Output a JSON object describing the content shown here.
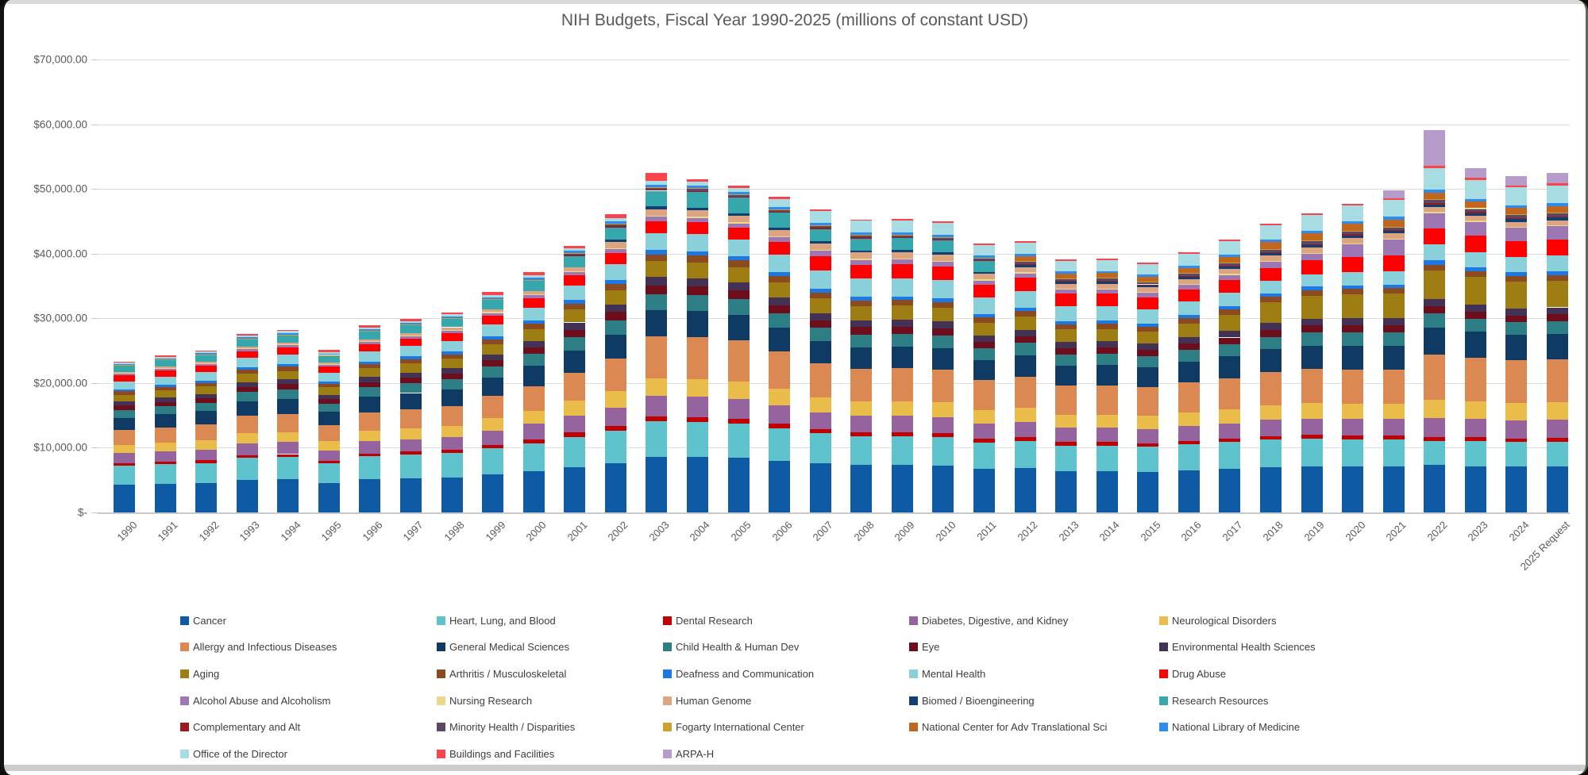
{
  "window": {
    "top_strip": true,
    "bottom_strip": true
  },
  "chart_data": {
    "type": "stacked-bar",
    "title": "NIH Budgets, Fiscal Year 1990-2025 (millions of constant USD)",
    "grid": true,
    "legend_position": "bottom",
    "y_axis": {
      "min": 0,
      "max": 70000,
      "step": 10000,
      "tick_labels": [
        "$-",
        "$10,000.00",
        "$20,000.00",
        "$30,000.00",
        "$40,000.00",
        "$50,000.00",
        "$60,000.00",
        "$70,000.00"
      ]
    },
    "categories": [
      "1990",
      "1991",
      "1992",
      "1993",
      "1994",
      "1995",
      "1996",
      "1997",
      "1998",
      "1999",
      "2000",
      "2001",
      "2002",
      "2003",
      "2004",
      "2005",
      "2006",
      "2007",
      "2008",
      "2009",
      "2010",
      "2011",
      "2012",
      "2013",
      "2014",
      "2015",
      "2016",
      "2017",
      "2018",
      "2019",
      "2020",
      "2021",
      "2022",
      "2023",
      "2024",
      "2025 Request"
    ],
    "series": [
      {
        "name": "Cancer",
        "color": "#0E5AA4",
        "values": [
          4300,
          4450,
          4550,
          5000,
          5100,
          4500,
          5150,
          5300,
          5450,
          5900,
          6400,
          7000,
          7600,
          8600,
          8550,
          8400,
          8000,
          7600,
          7300,
          7300,
          7250,
          6700,
          6850,
          6400,
          6400,
          6300,
          6550,
          6750,
          7000,
          7100,
          7050,
          7050,
          7300,
          7150,
          7050,
          7100
        ]
      },
      {
        "name": "Heart, Lung, and Blood",
        "color": "#5FC3CD",
        "values": [
          2900,
          3000,
          3100,
          3400,
          3450,
          3050,
          3500,
          3600,
          3700,
          4000,
          4300,
          4700,
          5050,
          5500,
          5450,
          5350,
          5000,
          4600,
          4450,
          4450,
          4400,
          4100,
          4200,
          3950,
          3950,
          3900,
          4000,
          4100,
          4250,
          4300,
          4250,
          4250,
          3700,
          3850,
          3800,
          3850
        ]
      },
      {
        "name": "Dental Research",
        "color": "#C00000",
        "values": [
          390,
          400,
          410,
          450,
          460,
          410,
          470,
          480,
          500,
          540,
          580,
          630,
          680,
          730,
          730,
          710,
          670,
          620,
          600,
          600,
          590,
          550,
          560,
          520,
          520,
          510,
          530,
          540,
          560,
          570,
          570,
          570,
          620,
          600,
          580,
          590
        ]
      },
      {
        "name": "Diabetes, Digestive, and Kidney",
        "color": "#95639E",
        "values": [
          1550,
          1600,
          1650,
          1800,
          1850,
          1650,
          1900,
          1950,
          2000,
          2200,
          2400,
          2650,
          2900,
          3150,
          3140,
          3080,
          2900,
          2650,
          2550,
          2550,
          2530,
          2350,
          2400,
          2250,
          2250,
          2220,
          2320,
          2400,
          2500,
          2550,
          2560,
          2560,
          2950,
          2850,
          2800,
          2800
        ]
      },
      {
        "name": "Neurological Disorders",
        "color": "#EABC4A",
        "values": [
          1300,
          1350,
          1400,
          1550,
          1580,
          1400,
          1600,
          1650,
          1700,
          1900,
          2050,
          2300,
          2500,
          2750,
          2740,
          2690,
          2520,
          2320,
          2240,
          2250,
          2230,
          2070,
          2120,
          1970,
          1980,
          1970,
          2050,
          2140,
          2270,
          2360,
          2390,
          2390,
          2850,
          2750,
          2700,
          2700
        ]
      },
      {
        "name": "Allergy and Infectious Diseases",
        "color": "#DC8853",
        "values": [
          2250,
          2350,
          2450,
          2700,
          2780,
          2450,
          2850,
          2980,
          3100,
          3450,
          3800,
          4300,
          5000,
          6450,
          6450,
          6350,
          5800,
          5300,
          5100,
          5120,
          5080,
          4700,
          4820,
          4490,
          4520,
          4450,
          4650,
          4840,
          5100,
          5270,
          5300,
          5300,
          7000,
          6700,
          6550,
          6600
        ]
      },
      {
        "name": "General Medical Sciences",
        "color": "#0E3A63",
        "values": [
          1950,
          2020,
          2090,
          2300,
          2350,
          2080,
          2400,
          2490,
          2580,
          2840,
          3100,
          3450,
          3750,
          4100,
          4080,
          4000,
          3700,
          3400,
          3300,
          3310,
          3280,
          3030,
          3370,
          3140,
          3160,
          3110,
          3250,
          3370,
          3530,
          3630,
          3660,
          3660,
          4200,
          4050,
          3950,
          3950
        ]
      },
      {
        "name": "Child Health & Human Dev",
        "color": "#2E7E85",
        "values": [
          1200,
          1240,
          1280,
          1400,
          1430,
          1270,
          1460,
          1510,
          1560,
          1710,
          1860,
          2060,
          2230,
          2420,
          2410,
          2360,
          2200,
          2050,
          1980,
          1980,
          1970,
          1820,
          1860,
          1730,
          1740,
          1710,
          1790,
          1850,
          1930,
          1990,
          2000,
          2000,
          2100,
          2000,
          1950,
          1980
        ]
      },
      {
        "name": "Eye",
        "color": "#6E0D1C",
        "values": [
          670,
          690,
          710,
          780,
          800,
          710,
          820,
          850,
          880,
          960,
          1050,
          1160,
          1260,
          1360,
          1360,
          1330,
          1250,
          1160,
          1120,
          1120,
          1110,
          1030,
          1050,
          980,
          980,
          970,
          1010,
          1040,
          1090,
          1120,
          1130,
          1130,
          1150,
          1100,
          1070,
          1080
        ]
      },
      {
        "name": "Environmental Health Sciences",
        "color": "#433156",
        "values": [
          640,
          660,
          680,
          750,
          770,
          680,
          780,
          810,
          840,
          920,
          1000,
          1110,
          1200,
          1300,
          1290,
          1270,
          1190,
          1110,
          1070,
          1070,
          1060,
          980,
          1000,
          930,
          930,
          920,
          960,
          990,
          1030,
          1060,
          1070,
          1070,
          1100,
          1060,
          1030,
          1040
        ]
      },
      {
        "name": "Aging",
        "color": "#9E7D13",
        "values": [
          1050,
          1100,
          1140,
          1280,
          1310,
          1150,
          1350,
          1400,
          1460,
          1610,
          1780,
          1980,
          2190,
          2460,
          2450,
          2400,
          2290,
          2260,
          2190,
          2190,
          2180,
          2010,
          2060,
          1920,
          1940,
          1900,
          2100,
          2550,
          3200,
          3500,
          3700,
          3800,
          4400,
          4250,
          4150,
          4100
        ]
      },
      {
        "name": "Arthritis / Musculoskeletal",
        "color": "#8C4A21",
        "values": [
          510,
          530,
          550,
          600,
          620,
          550,
          630,
          650,
          680,
          740,
          810,
          900,
          970,
          1060,
          1050,
          1030,
          960,
          890,
          860,
          860,
          850,
          790,
          810,
          750,
          750,
          740,
          780,
          800,
          840,
          860,
          870,
          870,
          920,
          890,
          870,
          880
        ]
      },
      {
        "name": "Deafness and Communication",
        "color": "#1E78E4",
        "values": [
          330,
          340,
          350,
          390,
          400,
          350,
          410,
          420,
          440,
          480,
          520,
          580,
          630,
          680,
          680,
          670,
          630,
          580,
          560,
          560,
          560,
          520,
          530,
          490,
          490,
          490,
          510,
          530,
          550,
          570,
          570,
          570,
          640,
          620,
          600,
          610
        ]
      },
      {
        "name": "Mental Health",
        "color": "#8AD0DB",
        "values": [
          1240,
          1280,
          1330,
          1470,
          1500,
          1330,
          1540,
          1600,
          1650,
          1820,
          1990,
          2210,
          2400,
          2600,
          2590,
          2540,
          2700,
          2900,
          2850,
          2850,
          2800,
          2550,
          2600,
          2400,
          2300,
          2200,
          2150,
          2100,
          1950,
          1950,
          2000,
          2050,
          2450,
          2400,
          2350,
          2400
        ]
      },
      {
        "name": "Drug Abuse",
        "color": "#FE0000",
        "values": [
          900,
          930,
          960,
          1060,
          1080,
          960,
          1110,
          1150,
          1190,
          1310,
          1430,
          1600,
          1740,
          1890,
          1880,
          1850,
          2000,
          2200,
          2120,
          2130,
          2110,
          1950,
          2000,
          1860,
          1880,
          1850,
          1800,
          1900,
          2000,
          2100,
          2300,
          2500,
          2550,
          2500,
          2450,
          2450
        ]
      },
      {
        "name": "Alcohol Abuse and Alcoholism",
        "color": "#9C77B4",
        "values": [
          310,
          320,
          330,
          360,
          370,
          330,
          380,
          390,
          410,
          450,
          490,
          540,
          590,
          640,
          640,
          630,
          700,
          780,
          750,
          760,
          750,
          700,
          710,
          660,
          670,
          660,
          700,
          800,
          900,
          1000,
          2000,
          2350,
          2300,
          2150,
          2100,
          2100
        ]
      },
      {
        "name": "Nursing Research",
        "color": "#EBD98B",
        "values": [
          80,
          85,
          90,
          100,
          100,
          90,
          105,
          110,
          115,
          125,
          135,
          150,
          165,
          180,
          180,
          175,
          170,
          170,
          165,
          165,
          160,
          150,
          155,
          145,
          145,
          140,
          145,
          150,
          155,
          160,
          160,
          160,
          190,
          182,
          178,
          180
        ]
      },
      {
        "name": "Human Genome",
        "color": "#DDA482",
        "values": [
          160,
          190,
          220,
          260,
          280,
          250,
          310,
          340,
          370,
          430,
          490,
          550,
          950,
          1000,
          1000,
          990,
          980,
          970,
          950,
          950,
          940,
          870,
          800,
          750,
          760,
          750,
          780,
          810,
          840,
          870,
          870,
          870,
          780,
          750,
          730,
          740
        ]
      },
      {
        "name": "Biomed / Bioengineering",
        "color": "#123F72",
        "values": [
          0,
          0,
          0,
          0,
          0,
          0,
          0,
          0,
          0,
          0,
          0,
          0,
          330,
          390,
          390,
          385,
          370,
          360,
          350,
          350,
          345,
          320,
          330,
          305,
          305,
          305,
          315,
          330,
          345,
          355,
          355,
          355,
          420,
          400,
          395,
          400
        ]
      },
      {
        "name": "Research Resources",
        "color": "#37A7AE",
        "values": [
          1000,
          1040,
          1070,
          1180,
          1210,
          1070,
          1230,
          1280,
          1330,
          1460,
          1590,
          1770,
          1930,
          2450,
          2440,
          2400,
          2290,
          1900,
          1840,
          1840,
          1830,
          1690,
          0,
          0,
          0,
          0,
          0,
          0,
          0,
          0,
          0,
          0,
          0,
          0,
          0,
          0
        ]
      },
      {
        "name": "Complementary and Alt",
        "color": "#9A1B1F",
        "values": [
          0,
          0,
          0,
          0,
          0,
          0,
          0,
          0,
          0,
          90,
          120,
          150,
          170,
          195,
          195,
          190,
          185,
          180,
          175,
          175,
          170,
          160,
          160,
          150,
          150,
          150,
          155,
          160,
          165,
          170,
          170,
          170,
          180,
          172,
          168,
          170
        ]
      },
      {
        "name": "Minority Health / Disparities",
        "color": "#5C4767",
        "values": [
          0,
          0,
          0,
          0,
          0,
          0,
          0,
          0,
          0,
          0,
          0,
          200,
          260,
          290,
          290,
          285,
          275,
          265,
          260,
          260,
          255,
          235,
          370,
          345,
          350,
          345,
          360,
          370,
          400,
          420,
          420,
          420,
          500,
          480,
          470,
          475
        ]
      },
      {
        "name": "Fogarty International Center",
        "color": "#CDA032",
        "values": [
          50,
          52,
          54,
          60,
          61,
          54,
          62,
          65,
          67,
          74,
          81,
          90,
          98,
          107,
          107,
          104,
          101,
          98,
          95,
          95,
          94,
          87,
          90,
          83,
          84,
          83,
          86,
          89,
          93,
          96,
          96,
          96,
          115,
          110,
          107,
          108
        ]
      },
      {
        "name": "National Center for Adv Translational Sci",
        "color": "#C0661E",
        "values": [
          0,
          0,
          0,
          0,
          0,
          0,
          0,
          0,
          0,
          0,
          0,
          0,
          0,
          0,
          0,
          0,
          0,
          0,
          0,
          0,
          0,
          0,
          780,
          730,
          760,
          760,
          800,
          900,
          1100,
          1150,
          1100,
          1050,
          1050,
          1010,
          990,
          1000
        ]
      },
      {
        "name": "National Library of Medicine",
        "color": "#2D8CEE",
        "values": [
          180,
          190,
          195,
          215,
          220,
          195,
          225,
          235,
          245,
          265,
          290,
          320,
          350,
          380,
          380,
          370,
          360,
          350,
          340,
          340,
          335,
          310,
          320,
          300,
          300,
          295,
          310,
          320,
          335,
          345,
          345,
          450,
          470,
          455,
          445,
          450
        ]
      },
      {
        "name": "Office of the Director",
        "color": "#A7DCE2",
        "values": [
          240,
          250,
          260,
          290,
          300,
          265,
          305,
          315,
          330,
          360,
          395,
          440,
          560,
          610,
          610,
          600,
          1200,
          1900,
          1850,
          1860,
          1850,
          1700,
          1750,
          1650,
          1700,
          1700,
          1900,
          2100,
          2200,
          2500,
          2550,
          2600,
          3300,
          2900,
          2750,
          2800
        ]
      },
      {
        "name": "Buildings and Facilities",
        "color": "#F9444C",
        "values": [
          140,
          150,
          160,
          175,
          180,
          330,
          350,
          330,
          330,
          420,
          450,
          400,
          640,
          1200,
          420,
          330,
          300,
          250,
          230,
          230,
          230,
          210,
          220,
          200,
          210,
          200,
          210,
          220,
          230,
          240,
          240,
          300,
          350,
          320,
          295,
          310
        ]
      },
      {
        "name": "ARPA-H",
        "color": "#B79CCB",
        "values": [
          0,
          0,
          0,
          0,
          0,
          0,
          0,
          0,
          0,
          0,
          0,
          0,
          0,
          0,
          0,
          0,
          0,
          0,
          0,
          0,
          0,
          0,
          0,
          0,
          0,
          0,
          0,
          0,
          0,
          0,
          0,
          1200,
          5500,
          1500,
          1450,
          1600
        ]
      }
    ]
  }
}
